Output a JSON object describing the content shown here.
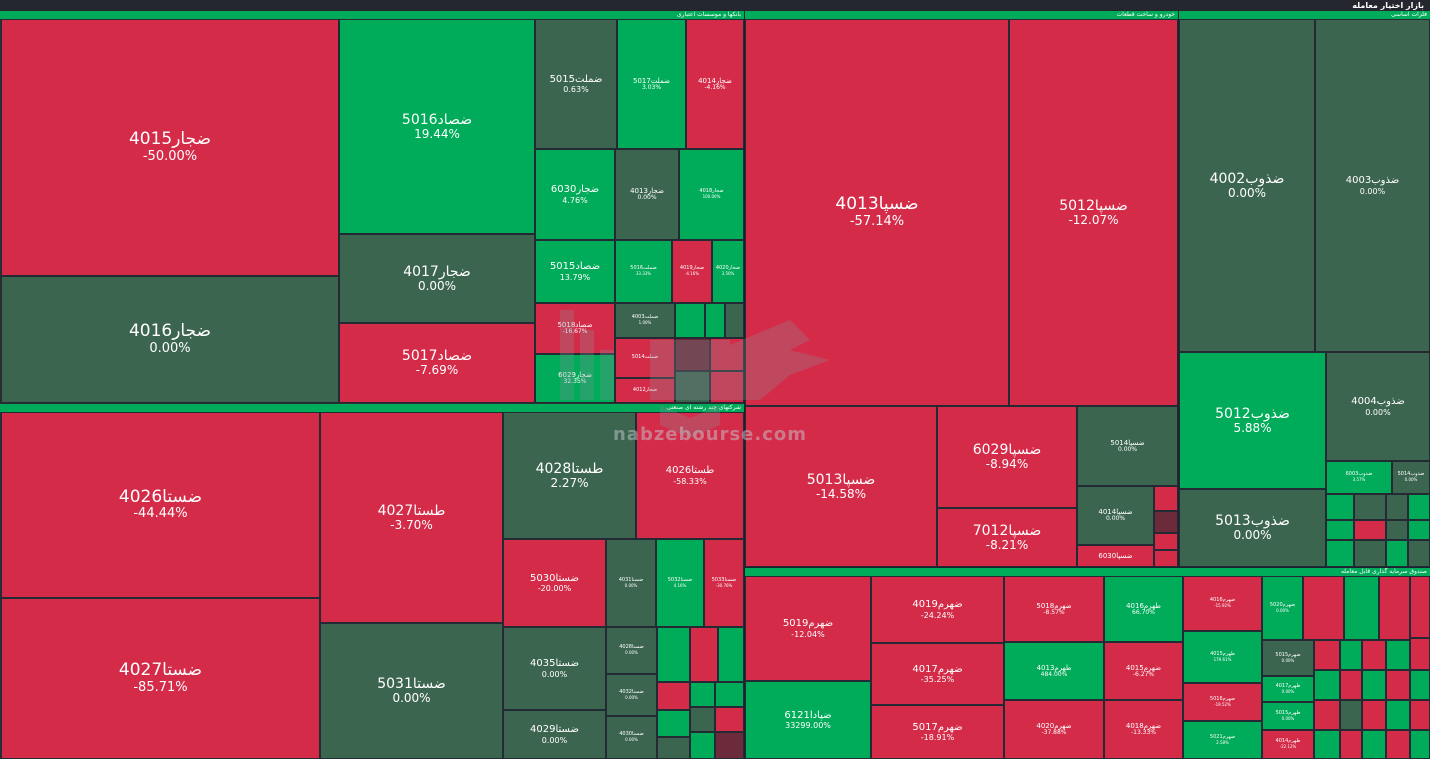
{
  "app_title": "بازار اختیار معامله",
  "watermark_text": "nabzebourse.com",
  "colors": {
    "down": "#d42b49",
    "up": "#00ab59",
    "flat": "#3c6550",
    "sector_header": "#00ab59"
  },
  "sectors": [
    {
      "id": "banks",
      "title": "بانکها و موسسات اعتباری"
    },
    {
      "id": "auto",
      "title": "خودرو و ساخت قطعات"
    },
    {
      "id": "basic_metals",
      "title": "فلزات اساسی"
    },
    {
      "id": "multi",
      "title": "شرکتهای چند رشته ای صنعتی"
    },
    {
      "id": "funds",
      "title": "صندوق سرمایه گذاری قابل معامله"
    }
  ],
  "tiles": [
    {
      "name": "ضجار4015",
      "pct": "-50.00%",
      "color": "red"
    },
    {
      "name": "ضجار4016",
      "pct": "0.00%",
      "color": "dark"
    },
    {
      "name": "ضصاد5016",
      "pct": "19.44%",
      "color": "green"
    },
    {
      "name": "ضجار4017",
      "pct": "0.00%",
      "color": "dark"
    },
    {
      "name": "ضصاد5017",
      "pct": "-7.69%",
      "color": "red"
    },
    {
      "name": "ضملت5015",
      "pct": "0.63%",
      "color": "dark"
    },
    {
      "name": "ضملت5017",
      "pct": "3.03%",
      "color": "green"
    },
    {
      "name": "ضجار4014",
      "pct": "-4.16%",
      "color": "red"
    },
    {
      "name": "ضجار6030",
      "pct": "4.76%",
      "color": "green"
    },
    {
      "name": "ضجار4013",
      "pct": "0.00%",
      "color": "dark"
    },
    {
      "name": "ضجار4018",
      "pct": "100.00%",
      "color": "green"
    },
    {
      "name": "ضصاد5015",
      "pct": "13.79%",
      "color": "green"
    },
    {
      "name": "ضملت5016",
      "pct": "33.33%",
      "color": "green"
    },
    {
      "name": "ضجار4019",
      "pct": "-4.16%",
      "color": "red"
    },
    {
      "name": "ضجار4020",
      "pct": "3.50%",
      "color": "green"
    },
    {
      "name": "ضصاد5018",
      "pct": "-16.67%",
      "color": "red"
    },
    {
      "name": "ضملت4003",
      "pct": "1.00%",
      "color": "dark"
    },
    {
      "name": "ضجار6029",
      "pct": "32.35%",
      "color": "green"
    },
    {
      "name": "ضملت5014",
      "pct": "",
      "color": "red"
    },
    {
      "name": "ضجار4012",
      "pct": "",
      "color": "red"
    },
    {
      "name": "ضستا4026",
      "pct": "-44.44%",
      "color": "red"
    },
    {
      "name": "ضستا4027",
      "pct": "-85.71%",
      "color": "red"
    },
    {
      "name": "طستا4027",
      "pct": "-3.70%",
      "color": "red"
    },
    {
      "name": "ضستا5031",
      "pct": "0.00%",
      "color": "dark"
    },
    {
      "name": "طستا4028",
      "pct": "2.27%",
      "color": "dark"
    },
    {
      "name": "طستا4026",
      "pct": "-58.33%",
      "color": "red"
    },
    {
      "name": "ضستا5030",
      "pct": "-20.00%",
      "color": "red"
    },
    {
      "name": "ضستا4035",
      "pct": "0.00%",
      "color": "dark"
    },
    {
      "name": "ضستا4029",
      "pct": "0.00%",
      "color": "dark"
    },
    {
      "name": "ضستا4031",
      "pct": "0.00%",
      "color": "dark"
    },
    {
      "name": "ضستا5032",
      "pct": "4.16%",
      "color": "green"
    },
    {
      "name": "ضستا5033",
      "pct": "-30.76%",
      "color": "red"
    },
    {
      "name": "ضستا4028",
      "pct": "0.00%",
      "color": "dark"
    },
    {
      "name": "ضستا4032",
      "pct": "0.00%",
      "color": "dark"
    },
    {
      "name": "ضستا4030",
      "pct": "0.00%",
      "color": "dark"
    },
    {
      "name": "ضسپا4013",
      "pct": "-57.14%",
      "color": "red"
    },
    {
      "name": "ضسپا5012",
      "pct": "-12.07%",
      "color": "red"
    },
    {
      "name": "ضسپا5013",
      "pct": "-14.58%",
      "color": "red"
    },
    {
      "name": "ضسپا6029",
      "pct": "-8.94%",
      "color": "red"
    },
    {
      "name": "ضسپا7012",
      "pct": "-8.21%",
      "color": "red"
    },
    {
      "name": "ضسپا5014",
      "pct": "0.00%",
      "color": "dark"
    },
    {
      "name": "ضسپا4014",
      "pct": "0.00%",
      "color": "dark"
    },
    {
      "name": "ضسپا6030",
      "pct": "",
      "color": "red"
    },
    {
      "name": "ضذوب4002",
      "pct": "0.00%",
      "color": "dark"
    },
    {
      "name": "ضذوب4003",
      "pct": "0.00%",
      "color": "dark"
    },
    {
      "name": "ضذوب5012",
      "pct": "5.88%",
      "color": "green"
    },
    {
      "name": "ضذوب4004",
      "pct": "0.00%",
      "color": "dark"
    },
    {
      "name": "ضذوب5013",
      "pct": "0.00%",
      "color": "dark"
    },
    {
      "name": "ضذوب6003",
      "pct": "3.57%",
      "color": "green"
    },
    {
      "name": "ضذوب5014",
      "pct": "0.00%",
      "color": "dark"
    },
    {
      "name": "ضهرم5019",
      "pct": "-12.04%",
      "color": "red"
    },
    {
      "name": "ضپادا6121",
      "pct": "33299.00%",
      "color": "green"
    },
    {
      "name": "ضهرم4019",
      "pct": "-24.24%",
      "color": "red"
    },
    {
      "name": "ضهرم4017",
      "pct": "-35.25%",
      "color": "red"
    },
    {
      "name": "ضهرم5017",
      "pct": "-18.91%",
      "color": "red"
    },
    {
      "name": "ضهرم5018",
      "pct": "-8.57%",
      "color": "red"
    },
    {
      "name": "طهرم4016",
      "pct": "66.70%",
      "color": "green"
    },
    {
      "name": "طهرم4013",
      "pct": "484.00%",
      "color": "green"
    },
    {
      "name": "ضهرم4015",
      "pct": "-6.27%",
      "color": "red"
    },
    {
      "name": "ضهرم4020",
      "pct": "-37.88%",
      "color": "red"
    },
    {
      "name": "ضهرم4018",
      "pct": "-13.33%",
      "color": "red"
    },
    {
      "name": "ضهرم4016",
      "pct": "-15.92%",
      "color": "red"
    },
    {
      "name": "طهرم4015",
      "pct": "179.61%",
      "color": "green"
    },
    {
      "name": "ضهرم5016",
      "pct": "-19.52%",
      "color": "red"
    },
    {
      "name": "ضهرم5021",
      "pct": "2.58%",
      "color": "green"
    },
    {
      "name": "ضهرم5020",
      "pct": "0.00%",
      "color": "green"
    },
    {
      "name": "ضهرم5015",
      "pct": "0.00%",
      "color": "dark"
    },
    {
      "name": "طهرم4017",
      "pct": "0.00%",
      "color": "green"
    },
    {
      "name": "طهرم5015",
      "pct": "0.00%",
      "color": "green"
    },
    {
      "name": "طهرم4014",
      "pct": "-22.12%",
      "color": "red"
    }
  ]
}
